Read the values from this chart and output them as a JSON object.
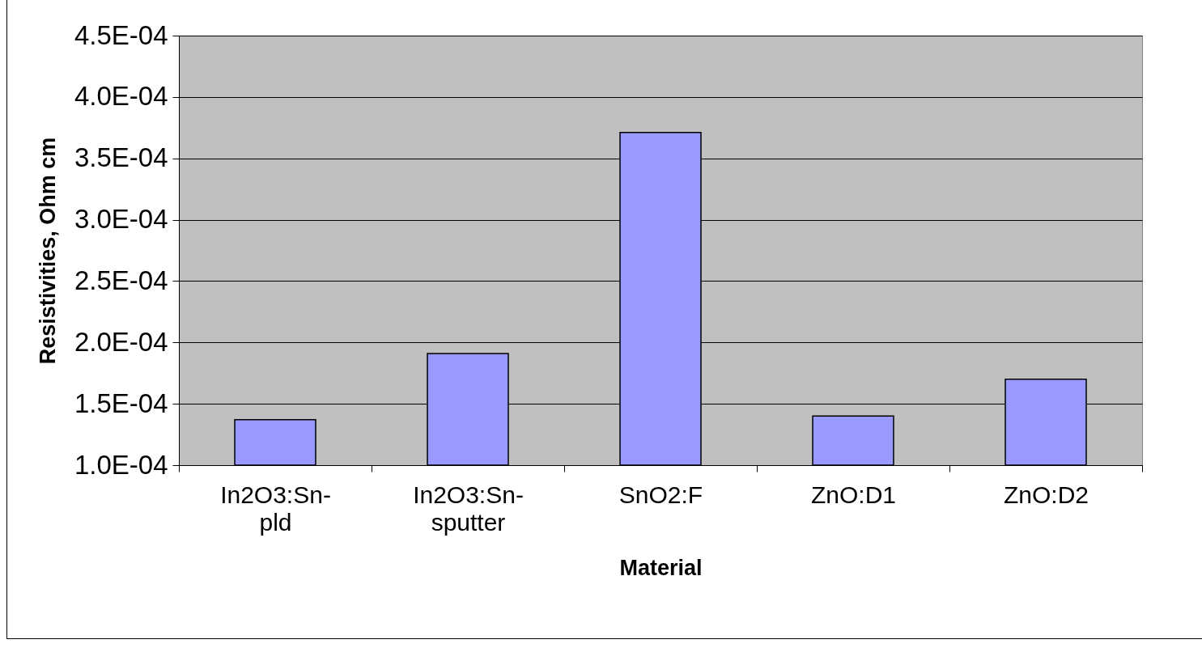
{
  "chart_data": {
    "type": "bar",
    "xlabel": "Material",
    "ylabel": "Resistivities, Ohm cm",
    "categories": [
      "In2O3:Sn-pld",
      "In2O3:Sn-sputter",
      "SnO2:F",
      "ZnO:D1",
      "ZnO:D2"
    ],
    "values": [
      0.000137,
      0.000191,
      0.000371,
      0.00014,
      0.00017
    ],
    "color": "#9999ff",
    "ylim": [
      0.0001,
      0.00045
    ],
    "yticks": [
      {
        "value": 0.0001,
        "label": "1.0E-04"
      },
      {
        "value": 0.00015,
        "label": "1.5E-04"
      },
      {
        "value": 0.0002,
        "label": "2.0E-04"
      },
      {
        "value": 0.00025,
        "label": "2.5E-04"
      },
      {
        "value": 0.0003,
        "label": "3.0E-04"
      },
      {
        "value": 0.00035,
        "label": "3.5E-04"
      },
      {
        "value": 0.0004,
        "label": "4.0E-04"
      },
      {
        "value": 0.00045,
        "label": "4.5E-04"
      }
    ],
    "grid": "y"
  }
}
